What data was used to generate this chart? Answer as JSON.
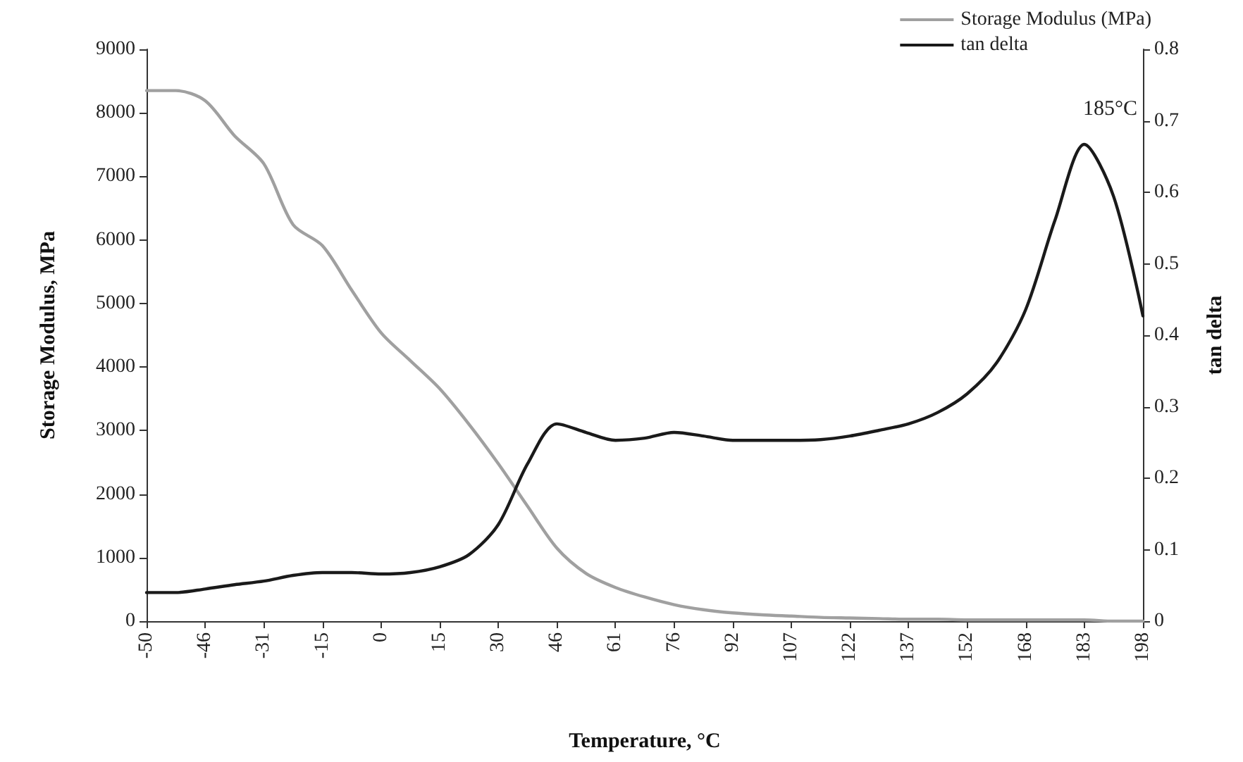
{
  "chart_data": {
    "type": "line",
    "xlabel": "Temperature, °C",
    "ylabel": "Storage Modulus, MPa",
    "y2label": "tan delta",
    "categories": [
      "-50",
      null,
      "-46",
      null,
      "-31",
      null,
      "-15",
      null,
      "0",
      null,
      "15",
      null,
      "30",
      null,
      "46",
      null,
      "61",
      null,
      "76",
      null,
      "92",
      null,
      "107",
      null,
      "122",
      null,
      "137",
      null,
      "152",
      null,
      "168",
      null,
      "183",
      null,
      "198"
    ],
    "series": [
      {
        "name": "Storage Modulus (MPa)",
        "color": "#a0a0a0",
        "values": [
          8350,
          8350,
          8190,
          7640,
          7200,
          6240,
          5910,
          5210,
          4540,
          4100,
          3660,
          3100,
          2480,
          1810,
          1150,
          750,
          530,
          380,
          260,
          180,
          130,
          100,
          80,
          60,
          50,
          40,
          30,
          30,
          20,
          20,
          20,
          20,
          20,
          0,
          0
        ]
      },
      {
        "name": "tan delta",
        "color": "#1a1a1a",
        "axis": "y2",
        "values": [
          0.04,
          0.04,
          0.045,
          0.051,
          0.056,
          0.064,
          0.068,
          0.068,
          0.066,
          0.068,
          0.076,
          0.093,
          0.135,
          0.22,
          0.276,
          0.264,
          0.253,
          0.256,
          0.264,
          0.259,
          0.253,
          0.253,
          0.253,
          0.254,
          0.259,
          0.267,
          0.276,
          0.292,
          0.318,
          0.361,
          0.436,
          0.561,
          0.667,
          0.594,
          0.427
        ]
      }
    ],
    "ylim": [
      0,
      9000
    ],
    "yticks": [
      0,
      1000,
      2000,
      3000,
      4000,
      5000,
      6000,
      7000,
      8000,
      9000
    ],
    "y2lim": [
      0,
      0.8
    ],
    "y2ticks": [
      0,
      0.1,
      0.2,
      0.3,
      0.4,
      0.5,
      0.6,
      0.7,
      0.8
    ],
    "annotations": [
      "185°C"
    ],
    "legend": "top right",
    "grid": false,
    "marker": "none",
    "line_style": "solid"
  }
}
